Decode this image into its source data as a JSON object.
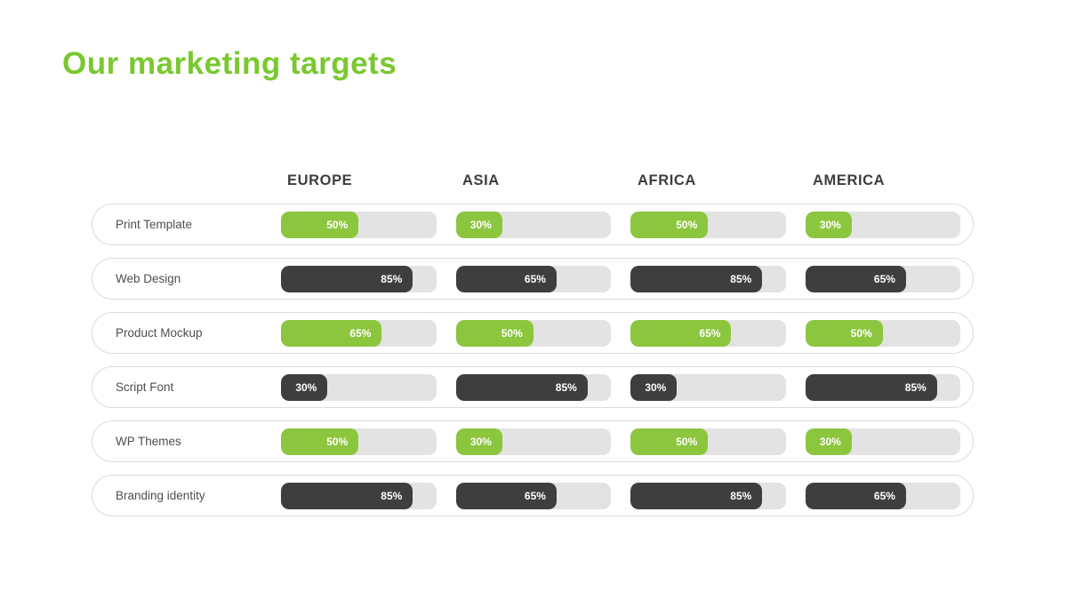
{
  "title": "Our marketing targets",
  "colors": {
    "title_green": "#79C82F",
    "bar_green": "#8CC63F",
    "bar_dark": "#3E3E3E",
    "track_gray": "#E3E3E3",
    "row_border": "#DCDCDC",
    "header_text": "#3E3E3E",
    "label_text": "#4F4F4F"
  },
  "chart_data": {
    "type": "bar",
    "orientation": "horizontal",
    "title": "Our marketing targets",
    "unit": "%",
    "value_range": [
      0,
      100
    ],
    "categories": [
      "EUROPE",
      "ASIA",
      "AFRICA",
      "AMERICA"
    ],
    "series": [
      {
        "name": "Print Template",
        "color_key": "bar_green",
        "values": [
          50,
          30,
          50,
          30
        ]
      },
      {
        "name": "Web Design",
        "color_key": "bar_dark",
        "values": [
          85,
          65,
          85,
          65
        ]
      },
      {
        "name": "Product Mockup",
        "color_key": "bar_green",
        "values": [
          65,
          50,
          65,
          50
        ]
      },
      {
        "name": "Script Font",
        "color_key": "bar_dark",
        "values": [
          30,
          85,
          30,
          85
        ]
      },
      {
        "name": "WP Themes",
        "color_key": "bar_green",
        "values": [
          50,
          30,
          50,
          30
        ]
      },
      {
        "name": "Branding identity",
        "color_key": "bar_dark",
        "values": [
          85,
          65,
          85,
          65
        ]
      }
    ]
  }
}
